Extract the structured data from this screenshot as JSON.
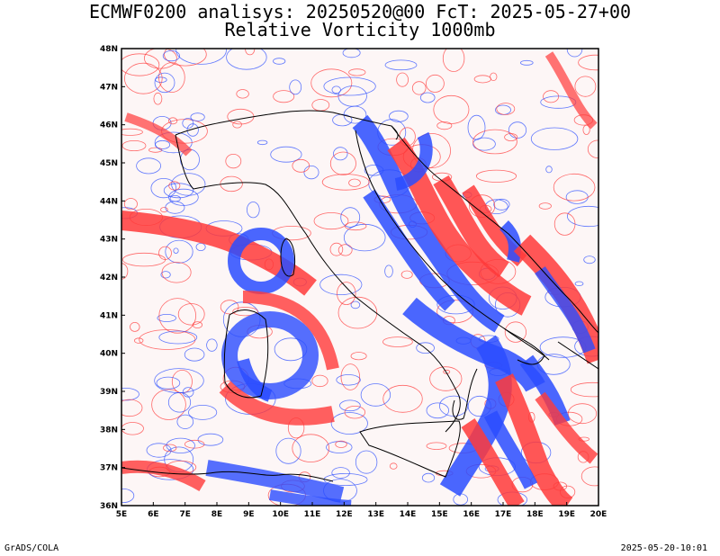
{
  "header": {
    "title_line1": "ECMWF0200 analisys: 20250520@00 FcT: 2025-05-27+00",
    "title_line2": "Relative Vorticity 1000mb"
  },
  "map": {
    "projection": "lat-lon",
    "lon_range": [
      5,
      20
    ],
    "lat_range": [
      36,
      48
    ],
    "lon_labels": [
      "5E",
      "6E",
      "7E",
      "8E",
      "9E",
      "10E",
      "11E",
      "12E",
      "13E",
      "14E",
      "15E",
      "16E",
      "17E",
      "18E",
      "19E",
      "20E"
    ],
    "lat_labels": [
      "36N",
      "37N",
      "38N",
      "39N",
      "40N",
      "41N",
      "42N",
      "43N",
      "44N",
      "45N",
      "46N",
      "47N",
      "48N"
    ],
    "colors": {
      "positive_contour": "#ff3a3a",
      "negative_contour": "#2a4cff",
      "coastline": "#000000"
    }
  },
  "footer": {
    "credit": "GrADS/COLA",
    "timestamp": "2025-05-20-10:01"
  }
}
